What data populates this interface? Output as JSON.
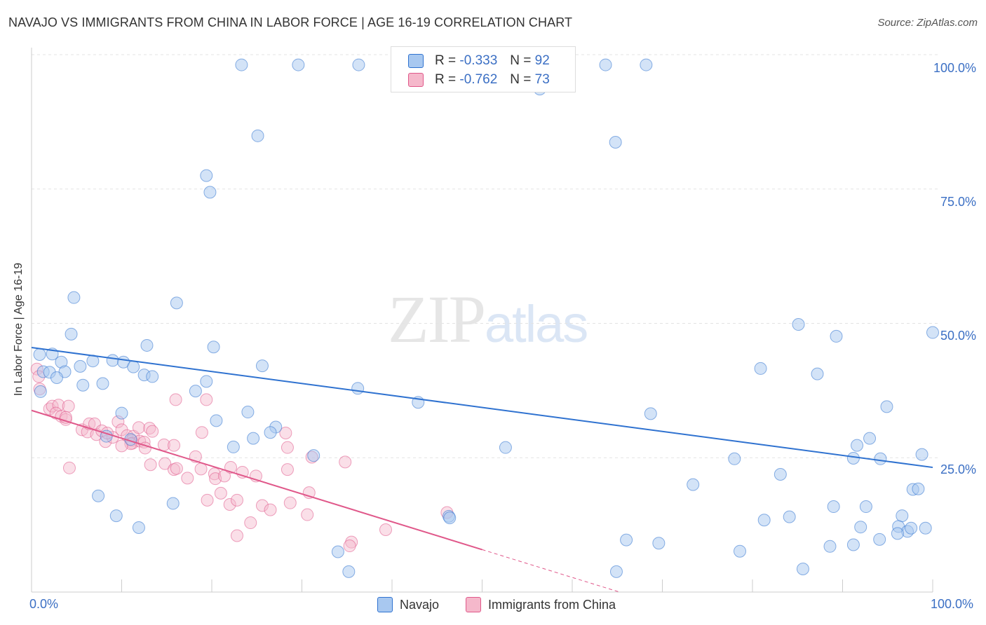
{
  "title": "NAVAJO VS IMMIGRANTS FROM CHINA IN LABOR FORCE | AGE 16-19 CORRELATION CHART",
  "source": "Source: ZipAtlas.com",
  "watermark": {
    "zip": "ZIP",
    "atlas": "atlas"
  },
  "colors": {
    "navajo": "#a8c8f0",
    "navajo_line": "#2f72d0",
    "china": "#f5b8cb",
    "china_line": "#e0588a",
    "accent_text": "#3b6fc4"
  },
  "legend": {
    "rows": [
      {
        "r_label": "R = ",
        "r_value": "-0.333",
        "n_label": "N = ",
        "n_value": "92"
      },
      {
        "r_label": "R = ",
        "r_value": "-0.762",
        "n_label": "N = ",
        "n_value": "73"
      }
    ]
  },
  "bottom_legend": [
    "Navajo",
    "Immigrants from China"
  ],
  "chart_data": {
    "type": "scatter",
    "title": "NAVAJO VS IMMIGRANTS FROM CHINA IN LABOR FORCE | AGE 16-19 CORRELATION CHART",
    "xlabel": "",
    "ylabel": "In Labor Force | Age 16-19",
    "xlim": [
      0,
      100
    ],
    "ylim": [
      0,
      100
    ],
    "x_tick_labels": [
      "0.0%",
      "100.0%"
    ],
    "y_tick_labels": [
      "100.0%",
      "75.0%",
      "50.0%",
      "25.0%"
    ],
    "y_ticks": [
      100,
      75,
      50,
      25
    ],
    "series": [
      {
        "name": "Navajo",
        "r": -0.333,
        "n": 92,
        "trend": {
          "x": [
            0,
            100
          ],
          "y": [
            45.5,
            23.2
          ]
        },
        "points": [
          [
            23.3,
            98.1
          ],
          [
            29.6,
            98.1
          ],
          [
            36.3,
            98.1
          ],
          [
            63.7,
            98.1
          ],
          [
            68.2,
            98.1
          ],
          [
            56.4,
            93.6
          ],
          [
            25.1,
            84.9
          ],
          [
            64.8,
            83.7
          ],
          [
            19.4,
            77.5
          ],
          [
            19.8,
            74.4
          ],
          [
            4.7,
            54.8
          ],
          [
            16.1,
            53.8
          ],
          [
            4.4,
            48.0
          ],
          [
            12.8,
            45.9
          ],
          [
            20.2,
            45.6
          ],
          [
            0.9,
            44.2
          ],
          [
            2.3,
            44.3
          ],
          [
            3.3,
            42.8
          ],
          [
            5.4,
            42.0
          ],
          [
            6.8,
            43.0
          ],
          [
            9.0,
            43.1
          ],
          [
            10.2,
            42.8
          ],
          [
            11.3,
            41.9
          ],
          [
            25.6,
            42.1
          ],
          [
            12.5,
            40.4
          ],
          [
            13.4,
            40.1
          ],
          [
            1.3,
            41.0
          ],
          [
            2.0,
            40.9
          ],
          [
            3.7,
            41.0
          ],
          [
            2.8,
            39.9
          ],
          [
            5.7,
            38.5
          ],
          [
            7.9,
            38.8
          ],
          [
            18.2,
            37.4
          ],
          [
            19.4,
            39.2
          ],
          [
            36.2,
            37.9
          ],
          [
            42.9,
            35.3
          ],
          [
            1.0,
            37.3
          ],
          [
            10.0,
            33.3
          ],
          [
            24.0,
            33.5
          ],
          [
            20.5,
            31.9
          ],
          [
            27.1,
            30.7
          ],
          [
            26.5,
            29.7
          ],
          [
            24.6,
            28.6
          ],
          [
            8.3,
            29.0
          ],
          [
            11.0,
            28.4
          ],
          [
            22.4,
            27.0
          ],
          [
            31.3,
            25.4
          ],
          [
            52.6,
            26.9
          ],
          [
            68.7,
            33.2
          ],
          [
            85.1,
            49.8
          ],
          [
            89.3,
            47.6
          ],
          [
            100,
            48.3
          ],
          [
            80.9,
            41.6
          ],
          [
            87.2,
            40.6
          ],
          [
            94.9,
            34.5
          ],
          [
            91.6,
            27.3
          ],
          [
            93.0,
            28.6
          ],
          [
            98.8,
            25.6
          ],
          [
            91.2,
            24.9
          ],
          [
            94.2,
            24.8
          ],
          [
            78.0,
            24.8
          ],
          [
            83.1,
            21.9
          ],
          [
            73.4,
            20.0
          ],
          [
            97.8,
            19.1
          ],
          [
            98.4,
            19.2
          ],
          [
            89.0,
            15.9
          ],
          [
            92.6,
            15.9
          ],
          [
            96.6,
            14.2
          ],
          [
            81.3,
            13.4
          ],
          [
            84.1,
            14.0
          ],
          [
            92.0,
            12.1
          ],
          [
            96.2,
            12.2
          ],
          [
            97.2,
            11.3
          ],
          [
            97.6,
            11.9
          ],
          [
            99.2,
            11.9
          ],
          [
            96.1,
            10.9
          ],
          [
            94.1,
            9.8
          ],
          [
            66.0,
            9.7
          ],
          [
            69.6,
            9.1
          ],
          [
            88.6,
            8.5
          ],
          [
            91.2,
            8.8
          ],
          [
            78.6,
            7.6
          ],
          [
            85.6,
            4.3
          ],
          [
            64.9,
            3.8
          ],
          [
            34.0,
            7.5
          ],
          [
            35.2,
            3.8
          ],
          [
            46.3,
            14.1
          ],
          [
            46.4,
            13.8
          ],
          [
            9.4,
            14.2
          ],
          [
            11.9,
            12.0
          ],
          [
            7.4,
            17.9
          ],
          [
            15.7,
            16.5
          ]
        ]
      },
      {
        "name": "Immigrants from China",
        "r": -0.762,
        "n": 73,
        "trend": {
          "x": [
            0,
            50.0
          ],
          "y": [
            33.8,
            7.9
          ]
        },
        "trend_dashed": {
          "x": [
            50.0,
            100
          ],
          "y": [
            7.9,
            -18.0
          ]
        },
        "points": [
          [
            0.6,
            41.5
          ],
          [
            0.8,
            40.1
          ],
          [
            0.9,
            37.8
          ],
          [
            2.0,
            34.1
          ],
          [
            2.3,
            34.6
          ],
          [
            3.0,
            34.8
          ],
          [
            4.1,
            34.6
          ],
          [
            2.7,
            33.3
          ],
          [
            3.3,
            32.7
          ],
          [
            3.8,
            32.1
          ],
          [
            3.8,
            32.5
          ],
          [
            5.6,
            30.2
          ],
          [
            6.2,
            29.8
          ],
          [
            7.2,
            29.3
          ],
          [
            6.4,
            31.3
          ],
          [
            7.0,
            31.3
          ],
          [
            7.8,
            30.0
          ],
          [
            8.2,
            28.0
          ],
          [
            9.0,
            28.8
          ],
          [
            8.4,
            29.6
          ],
          [
            9.6,
            31.7
          ],
          [
            10.0,
            30.2
          ],
          [
            10.6,
            29.1
          ],
          [
            11.3,
            29.0
          ],
          [
            11.1,
            28.2
          ],
          [
            11.2,
            27.7
          ],
          [
            11.9,
            30.6
          ],
          [
            12.0,
            28.1
          ],
          [
            12.5,
            27.9
          ],
          [
            11.0,
            27.6
          ],
          [
            10.0,
            27.2
          ],
          [
            13.1,
            30.5
          ],
          [
            13.4,
            29.9
          ],
          [
            12.6,
            26.8
          ],
          [
            13.2,
            23.7
          ],
          [
            14.7,
            27.4
          ],
          [
            15.8,
            27.3
          ],
          [
            14.8,
            23.9
          ],
          [
            15.8,
            22.8
          ],
          [
            16.1,
            23.0
          ],
          [
            17.3,
            21.2
          ],
          [
            18.2,
            25.2
          ],
          [
            18.8,
            22.9
          ],
          [
            20.3,
            22.0
          ],
          [
            20.4,
            21.1
          ],
          [
            19.5,
            17.1
          ],
          [
            18.9,
            29.7
          ],
          [
            21.4,
            21.6
          ],
          [
            21.0,
            18.4
          ],
          [
            22.0,
            16.3
          ],
          [
            22.1,
            23.2
          ],
          [
            22.8,
            17.1
          ],
          [
            23.4,
            22.3
          ],
          [
            24.9,
            21.6
          ],
          [
            25.6,
            16.1
          ],
          [
            26.5,
            15.3
          ],
          [
            24.3,
            12.9
          ],
          [
            22.8,
            10.5
          ],
          [
            28.4,
            22.8
          ],
          [
            28.7,
            16.6
          ],
          [
            28.2,
            29.6
          ],
          [
            28.4,
            26.9
          ],
          [
            31.1,
            25.1
          ],
          [
            30.8,
            18.5
          ],
          [
            30.6,
            14.4
          ],
          [
            34.8,
            24.2
          ],
          [
            35.5,
            9.3
          ],
          [
            35.3,
            8.6
          ],
          [
            39.3,
            11.6
          ],
          [
            46.1,
            14.8
          ],
          [
            16.0,
            35.8
          ],
          [
            19.4,
            35.8
          ],
          [
            4.2,
            23.1
          ]
        ]
      }
    ]
  }
}
